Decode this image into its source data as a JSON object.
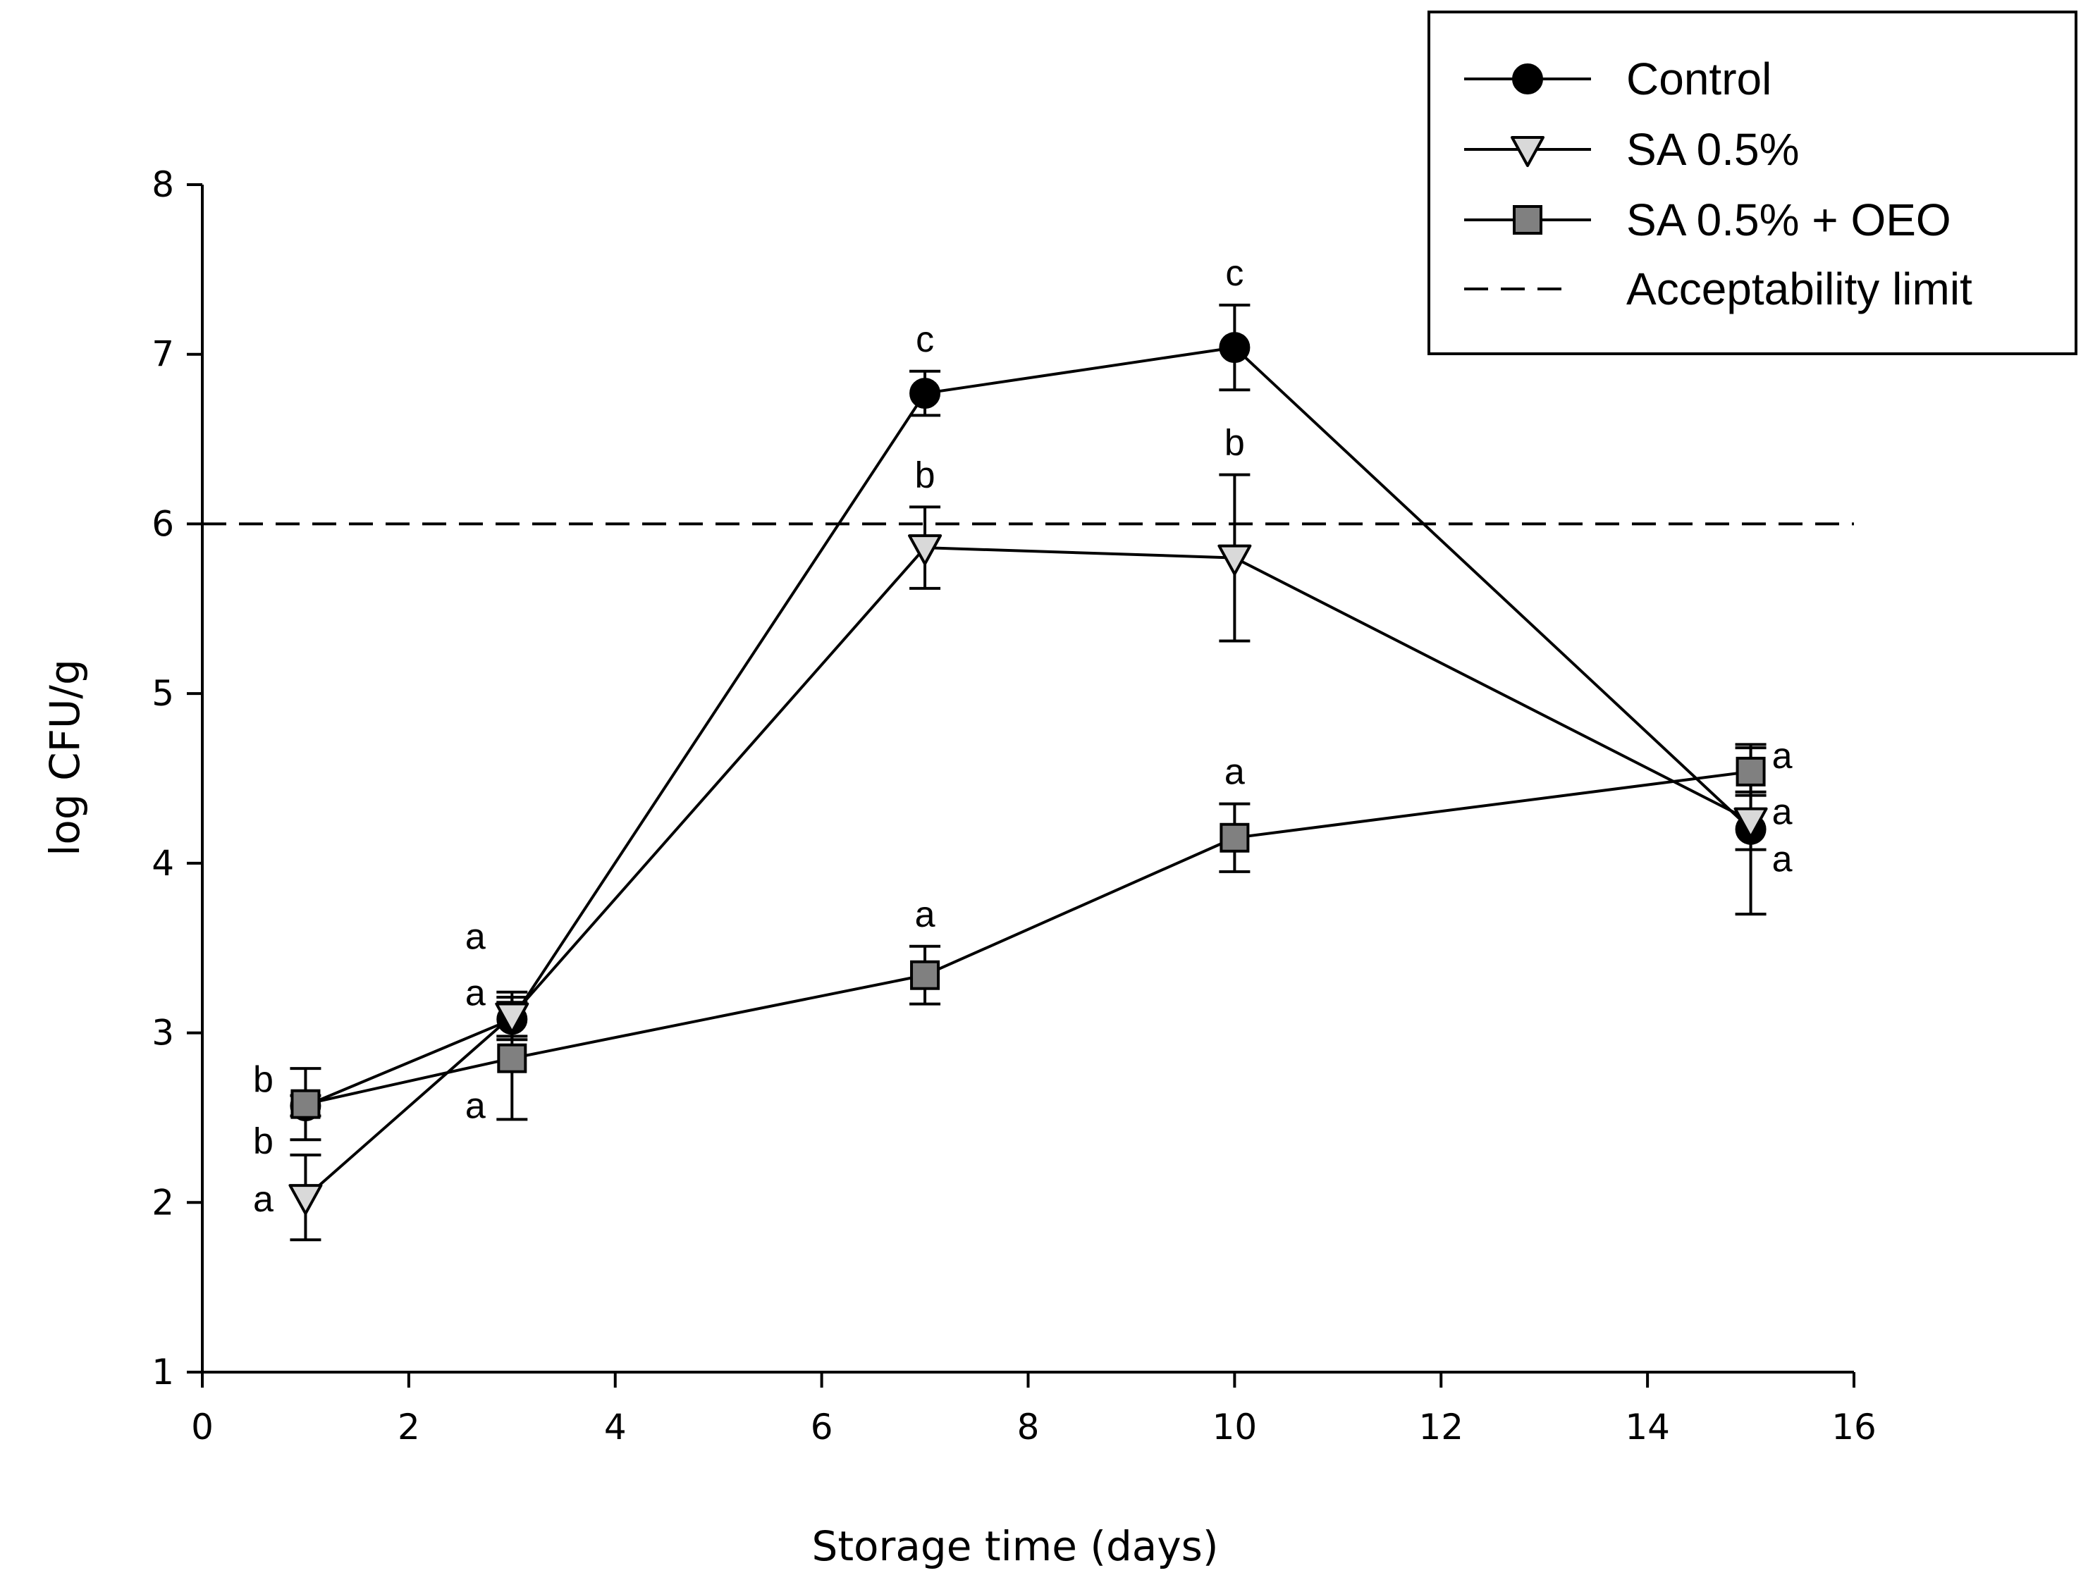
{
  "chart_data": {
    "type": "line",
    "xlabel": "Storage time (days)",
    "ylabel": "log CFU/g",
    "xlim": [
      0,
      16
    ],
    "ylim": [
      1,
      8
    ],
    "xticks": [
      0,
      2,
      4,
      6,
      8,
      10,
      12,
      14,
      16
    ],
    "yticks": [
      1,
      2,
      3,
      4,
      5,
      6,
      7,
      8
    ],
    "x": [
      1,
      3,
      7,
      10,
      15
    ],
    "series": [
      {
        "name": "Control",
        "marker": "circle",
        "color": "#000000",
        "values": [
          2.57,
          3.08,
          6.77,
          7.04,
          4.2
        ],
        "errors": [
          0.06,
          0.1,
          0.13,
          0.25,
          0.5
        ],
        "letters": [
          "b",
          "a",
          "c",
          "c",
          "a"
        ]
      },
      {
        "name": "SA 0.5%",
        "marker": "triangle-down",
        "color": "#d9d9d9",
        "values": [
          2.03,
          3.1,
          5.86,
          5.8,
          4.25
        ],
        "errors": [
          0.25,
          0.14,
          0.24,
          0.49,
          0.17
        ],
        "letters": [
          "a",
          "a",
          "b",
          "b",
          "a"
        ]
      },
      {
        "name": "SA 0.5% + OEO",
        "marker": "square",
        "color": "#808080",
        "values": [
          2.58,
          2.85,
          3.34,
          4.15,
          4.54
        ],
        "errors": [
          0.21,
          0.36,
          0.17,
          0.2,
          0.14
        ],
        "letters": [
          "b",
          "a",
          "a",
          "a",
          "a"
        ]
      }
    ],
    "reference_line": {
      "name": "Acceptability limit",
      "y": 6,
      "style": "dashed"
    },
    "legend": {
      "position": "top-right",
      "entries": [
        "Control",
        "SA 0.5%",
        "SA 0.5% + OEO",
        "Acceptability limit"
      ]
    }
  }
}
